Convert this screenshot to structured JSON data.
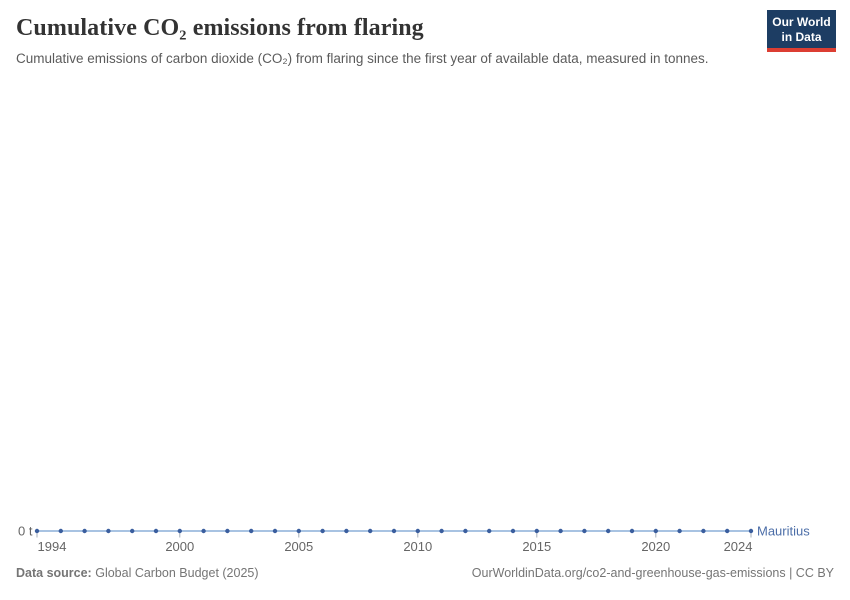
{
  "header": {
    "title": "Cumulative CO₂ emissions from flaring",
    "subtitle": "Cumulative emissions of carbon dioxide (CO₂) from flaring since the first year of available data, measured in tonnes.",
    "logo": {
      "line1": "Our World",
      "line2": "in Data"
    }
  },
  "chart_data": {
    "type": "line",
    "title": "Cumulative CO₂ emissions from flaring",
    "xlabel": "",
    "ylabel": "",
    "unit": "t",
    "x": [
      1994,
      1995,
      1996,
      1997,
      1998,
      1999,
      2000,
      2001,
      2002,
      2003,
      2004,
      2005,
      2006,
      2007,
      2008,
      2009,
      2010,
      2011,
      2012,
      2013,
      2014,
      2015,
      2016,
      2017,
      2018,
      2019,
      2020,
      2021,
      2022,
      2023,
      2024
    ],
    "series": [
      {
        "name": "Mauritius",
        "color": "#4c6ea8",
        "line_color": "#a8c3e2",
        "values": [
          0,
          0,
          0,
          0,
          0,
          0,
          0,
          0,
          0,
          0,
          0,
          0,
          0,
          0,
          0,
          0,
          0,
          0,
          0,
          0,
          0,
          0,
          0,
          0,
          0,
          0,
          0,
          0,
          0,
          0,
          0
        ]
      }
    ],
    "x_ticks": [
      1994,
      2000,
      2005,
      2010,
      2015,
      2020,
      2024
    ],
    "y_tick_label": "0 t",
    "xlim": [
      1994,
      2024
    ],
    "ylim": [
      0,
      0
    ],
    "grid": false,
    "legend_position": "end-of-line"
  },
  "footer": {
    "source_label": "Data source:",
    "source_value": "Global Carbon Budget (2025)",
    "license_text": "OurWorldinData.org/co2-and-greenhouse-gas-emissions | CC BY"
  },
  "colors": {
    "logo_navy": "#1d3d63",
    "logo_red": "#dc3e32",
    "series_blue": "#4c6ea8",
    "series_line_light": "#a8c3e2",
    "dot_blue": "#3a5e9e",
    "axis_text": "#666666",
    "tick_mark": "#a5aeb8"
  }
}
